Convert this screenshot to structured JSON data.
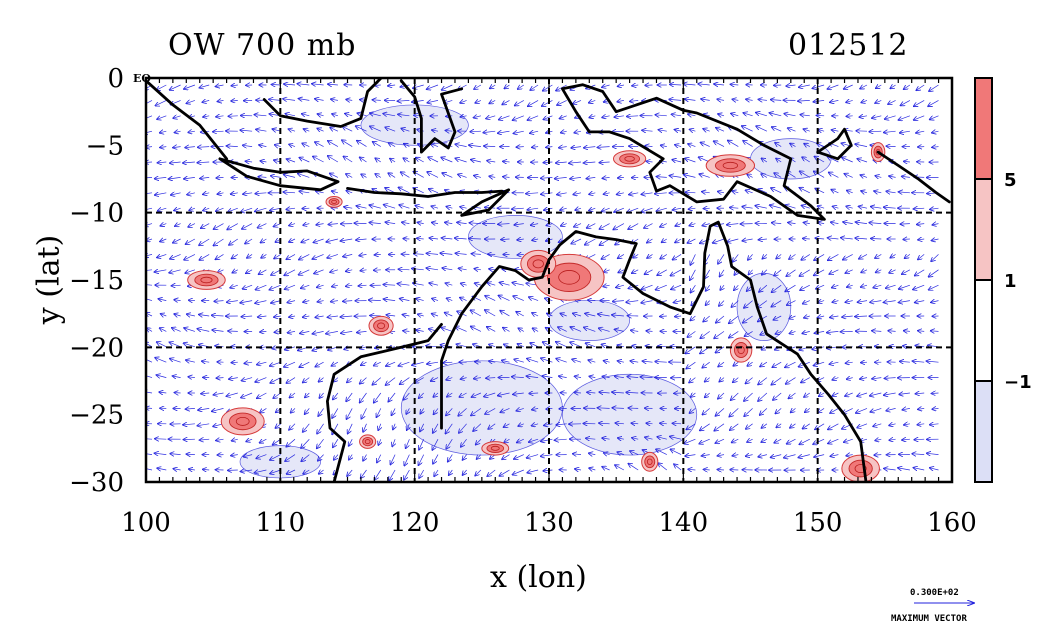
{
  "title": {
    "variable": "OW 700 mb",
    "date_code": "012512"
  },
  "map": {
    "corner_label": "EQ",
    "x_axis": {
      "label": "x (lon)",
      "range": [
        100,
        160
      ],
      "ticks": [
        100,
        110,
        120,
        130,
        140,
        150,
        160
      ],
      "tick_labels": [
        "100",
        "110",
        "120",
        "130",
        "140",
        "150",
        "160"
      ]
    },
    "y_axis": {
      "label": "y (lat)",
      "range": [
        -30,
        0
      ],
      "ticks": [
        0,
        -5,
        -10,
        -15,
        -20,
        -25,
        -30
      ],
      "tick_labels": [
        "0",
        "−5",
        "−10",
        "−15",
        "−20",
        "−25",
        "−30"
      ]
    },
    "gridlines_lon": [
      110,
      120,
      130,
      140,
      150
    ],
    "gridlines_lat": [
      -10,
      -20
    ],
    "colorbar": {
      "bands": [
        {
          "from": 5,
          "color": "#f07878"
        },
        {
          "from": 1,
          "to": 5,
          "color": "#f6c4c4"
        },
        {
          "from": -1,
          "to": 1,
          "color": "#ffffff"
        },
        {
          "to": -1,
          "color": "#dcdff6"
        }
      ],
      "labels": [
        "5",
        "1",
        "−1"
      ]
    },
    "positive_blobs": [
      {
        "lon": 131.5,
        "lat": -14.8,
        "rx": 2.6,
        "ry": 1.7
      },
      {
        "lon": 129.2,
        "lat": -13.8,
        "rx": 1.3,
        "ry": 1.0
      },
      {
        "lon": 104.5,
        "lat": -15.0,
        "rx": 1.4,
        "ry": 0.7
      },
      {
        "lon": 117.5,
        "lat": -18.4,
        "rx": 0.9,
        "ry": 0.7
      },
      {
        "lon": 144.3,
        "lat": -20.2,
        "rx": 0.8,
        "ry": 0.9
      },
      {
        "lon": 107.2,
        "lat": -25.5,
        "rx": 1.6,
        "ry": 1.0
      },
      {
        "lon": 137.5,
        "lat": -28.5,
        "rx": 0.6,
        "ry": 0.7
      },
      {
        "lon": 153.2,
        "lat": -29.0,
        "rx": 1.4,
        "ry": 1.0
      },
      {
        "lon": 143.5,
        "lat": -6.5,
        "rx": 1.8,
        "ry": 0.8
      },
      {
        "lon": 114.0,
        "lat": -9.2,
        "rx": 0.6,
        "ry": 0.4
      },
      {
        "lon": 136.0,
        "lat": -6.0,
        "rx": 1.2,
        "ry": 0.6
      },
      {
        "lon": 126.0,
        "lat": -27.5,
        "rx": 1.0,
        "ry": 0.5
      },
      {
        "lon": 154.5,
        "lat": -5.5,
        "rx": 0.5,
        "ry": 0.7
      },
      {
        "lon": 116.5,
        "lat": -27.0,
        "rx": 0.6,
        "ry": 0.5
      }
    ],
    "negative_patches": [
      {
        "lon": 127.5,
        "lat": -11.8,
        "rx": 3.5,
        "ry": 1.6
      },
      {
        "lon": 125.0,
        "lat": -24.5,
        "rx": 6.0,
        "ry": 3.5
      },
      {
        "lon": 136.0,
        "lat": -25.0,
        "rx": 5.0,
        "ry": 3.0
      },
      {
        "lon": 133.0,
        "lat": -18.0,
        "rx": 3.0,
        "ry": 1.5
      },
      {
        "lon": 146.0,
        "lat": -17.0,
        "rx": 2.0,
        "ry": 2.5
      },
      {
        "lon": 120.0,
        "lat": -3.5,
        "rx": 4.0,
        "ry": 1.5
      },
      {
        "lon": 148.0,
        "lat": -6.0,
        "rx": 3.0,
        "ry": 1.5
      },
      {
        "lon": 110.0,
        "lat": -28.5,
        "rx": 3.0,
        "ry": 1.2
      }
    ],
    "coastlines": [
      [
        [
          122.0,
          -26.0
        ],
        [
          122.0,
          -21.0
        ],
        [
          122.5,
          -19.5
        ],
        [
          123.5,
          -17.5
        ],
        [
          125.0,
          -15.5
        ],
        [
          126.3,
          -14.0
        ],
        [
          127.5,
          -14.3
        ],
        [
          128.5,
          -15.0
        ],
        [
          129.5,
          -14.8
        ],
        [
          130.0,
          -13.5
        ],
        [
          130.8,
          -12.4
        ],
        [
          132.0,
          -11.4
        ],
        [
          133.5,
          -11.8
        ],
        [
          135.0,
          -12.0
        ],
        [
          136.5,
          -12.3
        ],
        [
          136.0,
          -13.5
        ],
        [
          135.5,
          -14.8
        ],
        [
          137.0,
          -16.0
        ],
        [
          139.0,
          -17.0
        ],
        [
          140.5,
          -17.5
        ],
        [
          141.5,
          -15.5
        ],
        [
          141.6,
          -13.0
        ],
        [
          142.0,
          -11.0
        ],
        [
          142.6,
          -10.7
        ],
        [
          143.3,
          -12.5
        ],
        [
          143.6,
          -14.0
        ],
        [
          145.0,
          -15.0
        ],
        [
          145.5,
          -17.0
        ],
        [
          146.2,
          -19.0
        ],
        [
          148.5,
          -20.5
        ],
        [
          149.5,
          -22.0
        ],
        [
          150.8,
          -23.5
        ],
        [
          152.0,
          -25.0
        ],
        [
          153.2,
          -27.0
        ],
        [
          153.6,
          -30.0
        ]
      ],
      [
        [
          114.0,
          -30.0
        ],
        [
          114.8,
          -27.0
        ],
        [
          113.7,
          -26.0
        ],
        [
          113.5,
          -24.0
        ],
        [
          114.0,
          -22.0
        ],
        [
          116.0,
          -20.7
        ],
        [
          119.0,
          -20.0
        ],
        [
          121.0,
          -19.5
        ],
        [
          122.0,
          -18.3
        ]
      ],
      [
        [
          100.0,
          -0.2
        ],
        [
          102.0,
          -2.0
        ],
        [
          104.0,
          -3.5
        ],
        [
          106.0,
          -6.0
        ]
      ],
      [
        [
          105.5,
          -6.0
        ],
        [
          108.0,
          -6.7
        ],
        [
          110.0,
          -7.0
        ],
        [
          112.0,
          -6.9
        ],
        [
          114.3,
          -7.7
        ],
        [
          113.0,
          -8.3
        ],
        [
          110.0,
          -8.0
        ],
        [
          107.5,
          -7.3
        ],
        [
          105.5,
          -6.0
        ]
      ],
      [
        [
          115.0,
          -8.2
        ],
        [
          117.0,
          -8.5
        ],
        [
          119.0,
          -8.6
        ],
        [
          121.0,
          -8.8
        ],
        [
          123.0,
          -8.5
        ],
        [
          125.0,
          -8.5
        ],
        [
          126.5,
          -8.4
        ]
      ],
      [
        [
          123.5,
          -10.2
        ],
        [
          125.0,
          -9.2
        ],
        [
          127.0,
          -8.3
        ],
        [
          125.5,
          -9.8
        ],
        [
          123.5,
          -10.2
        ]
      ],
      [
        [
          108.8,
          -1.6
        ],
        [
          110.0,
          -2.8
        ],
        [
          112.0,
          -3.2
        ],
        [
          114.5,
          -3.6
        ],
        [
          116.0,
          -3.0
        ],
        [
          116.5,
          -1.0
        ],
        [
          117.5,
          0.0
        ]
      ],
      [
        [
          119.0,
          -0.2
        ],
        [
          120.0,
          -1.4
        ],
        [
          120.5,
          -3.0
        ],
        [
          120.5,
          -5.5
        ],
        [
          121.5,
          -4.5
        ],
        [
          122.5,
          -5.2
        ],
        [
          123.0,
          -4.0
        ],
        [
          122.0,
          -1.2
        ],
        [
          123.5,
          -0.8
        ]
      ],
      [
        [
          131.0,
          -0.8
        ],
        [
          132.5,
          -0.5
        ],
        [
          134.0,
          -1.0
        ],
        [
          135.0,
          -2.5
        ],
        [
          138.0,
          -1.5
        ],
        [
          140.0,
          -2.4
        ],
        [
          141.0,
          -2.6
        ],
        [
          144.0,
          -3.8
        ],
        [
          146.0,
          -5.0
        ],
        [
          148.0,
          -6.0
        ],
        [
          147.5,
          -8.0
        ],
        [
          149.5,
          -9.5
        ],
        [
          150.5,
          -10.5
        ],
        [
          148.5,
          -10.2
        ],
        [
          146.5,
          -8.8
        ],
        [
          144.0,
          -7.7
        ],
        [
          143.0,
          -9.0
        ],
        [
          141.0,
          -9.2
        ],
        [
          139.0,
          -8.0
        ],
        [
          138.0,
          -8.4
        ],
        [
          137.5,
          -7.0
        ],
        [
          138.5,
          -6.0
        ],
        [
          136.0,
          -4.5
        ],
        [
          134.5,
          -4.0
        ],
        [
          133.0,
          -4.0
        ],
        [
          132.0,
          -2.5
        ],
        [
          131.0,
          -0.8
        ]
      ],
      [
        [
          150.0,
          -5.5
        ],
        [
          151.5,
          -4.5
        ],
        [
          152.0,
          -3.8
        ],
        [
          152.5,
          -5.0
        ],
        [
          151.5,
          -6.0
        ],
        [
          150.0,
          -5.5
        ]
      ],
      [
        [
          154.5,
          -5.5
        ],
        [
          156.0,
          -6.5
        ],
        [
          157.5,
          -7.5
        ],
        [
          158.8,
          -8.5
        ],
        [
          159.8,
          -9.2
        ]
      ]
    ],
    "max_vector": {
      "value_label": "0.300E+02",
      "caption": "MAXIMUM VECTOR"
    }
  }
}
